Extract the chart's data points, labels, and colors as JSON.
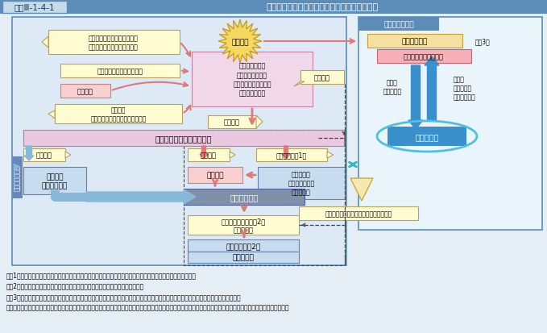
{
  "bg_color": "#e5eef5",
  "title_bar_color": "#5b8db8",
  "title_label_bg": "#c5dce8",
  "title_label_border": "#5b8db8",
  "title_label_text": "図表Ⅲ-1-4-1",
  "title_text": "要請から派遣、撤収までの流れ及び政府の対応",
  "main_box_bg": "#ddeaf5",
  "main_box_border": "#5b8db8",
  "right_box_bg": "#eaf4fb",
  "right_box_border": "#5b8db8",
  "kankei_label_bg": "#5b8db8",
  "kankei_label_text": "関係府省庁など",
  "naikaku_bg": "#f5e0a0",
  "naikaku_border": "#c8a040",
  "kanteiki_bg": "#f5b0b8",
  "kanteiki_border": "#d06070",
  "gov_box_bg": "#3a90cc",
  "gov_box_border": "#2a70aa",
  "gov_ellipse_color": "#50c0e0",
  "arrow_blue_big": "#3a90cc",
  "purple_box_bg": "#f0d8e8",
  "purple_box_border": "#c080a0",
  "yellow_box_bg": "#fefcd0",
  "yellow_box_border": "#b8a060",
  "pink_box_bg": "#f8d0d0",
  "pink_box_border": "#d08080",
  "blue_box_bg": "#c8dcf0",
  "blue_box_border": "#6080b0",
  "dark_box_bg": "#8090a8",
  "dark_box_text": "#ffffff",
  "star_fill": "#f5d860",
  "star_border": "#c8a020",
  "arrow_pink": "#e07878",
  "arrow_light_blue": "#88b8d8",
  "arrow_teal": "#30b8b8",
  "tategumi_bg": "#6688bb",
  "notes": [
    "（注1）　即応予備自衛官及び予備自衛官の招集は、防衛大臣が、必要に応じて内閣総理大臣の承認を得て行う。",
    "（注2）　防衛大臣が即応予備自衛官、予備自衛官の招集を解除することをいう。",
    "（注3）　自然災害、原子力災害、事故災害などの緊急事態の発生に際しては、各省庁の局長級の要員からなる緊急参集チームが参集する。",
    "　　　　さらに、激甚な災害が発生した場合は、総理などの判断により関係閣僚会議が開催され、状況に応じて、政府対策本部の設置や国家安全保障会議が開催される。"
  ]
}
